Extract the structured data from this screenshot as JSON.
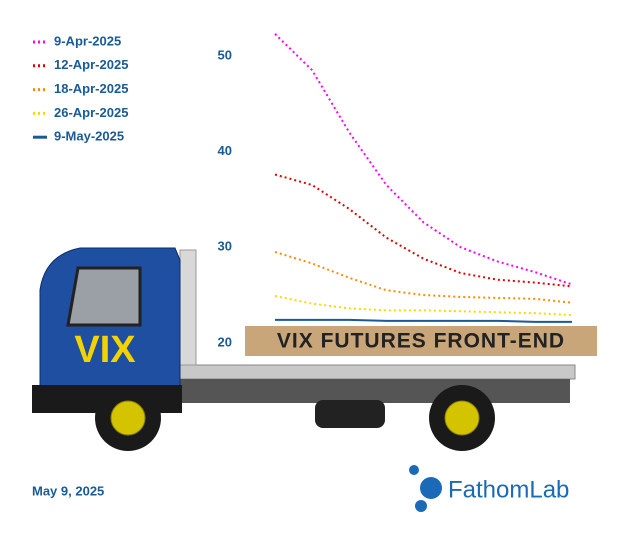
{
  "chart_data": {
    "type": "line",
    "truck_text": "VIX",
    "annotation": "VIX FUTURES FRONT-END",
    "date": "May 9, 2025",
    "logo": "FathomLab",
    "categories": [
      null,
      null,
      null,
      null,
      null,
      null,
      null,
      null,
      null
    ],
    "series": [
      {
        "name": "9-Apr-2025",
        "color": "#ff00ff",
        "dash": "dotted",
        "values": [
          52.3,
          48.5,
          42,
          36.5,
          32.6,
          30,
          28.5,
          27.4,
          26.1
        ]
      },
      {
        "name": "12-Apr-2025",
        "color": "#e00000",
        "dash": "dotted",
        "values": [
          37.6,
          36.5,
          34,
          31,
          28.8,
          27.3,
          26.6,
          26.3,
          25.9
        ]
      },
      {
        "name": "18-Apr-2025",
        "color": "#ff8c00",
        "dash": "dotted",
        "values": [
          29.5,
          28.3,
          26.8,
          25.5,
          25,
          24.8,
          24.7,
          24.6,
          24.2
        ]
      },
      {
        "name": "26-Apr-2025",
        "color": "#ffd700",
        "dash": "dotted",
        "values": [
          24.9,
          24.1,
          23.6,
          23.4,
          23.4,
          23.3,
          23.2,
          23.1,
          22.9
        ]
      },
      {
        "name": "9-May-2025",
        "color": "#1a5a96",
        "dash": "solid",
        "values": [
          22.4,
          22.4,
          22.4,
          22.3,
          22.3,
          22.3,
          22.3,
          22.2,
          22.2
        ]
      }
    ],
    "ylim": [
      18,
      54
    ],
    "yticks": [
      20,
      30,
      40,
      50
    ],
    "grid": false,
    "legend": "top-left"
  }
}
